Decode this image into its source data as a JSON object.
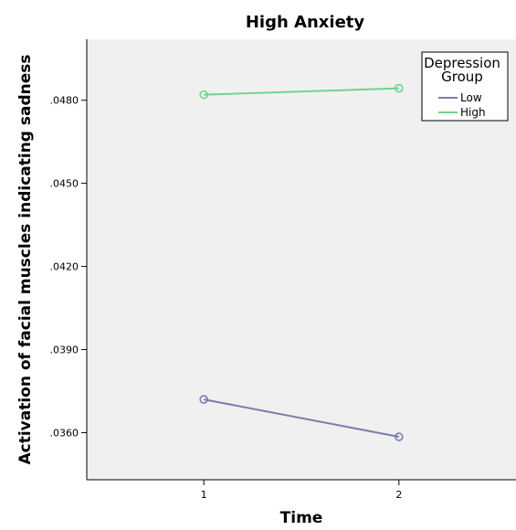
{
  "chart_data": {
    "type": "line",
    "title": "High Anxiety",
    "xlabel": "Time",
    "ylabel": "Activation of facial muscles indicating sadness",
    "x": [
      1,
      2
    ],
    "x_tick_labels": [
      "1",
      "2"
    ],
    "xlim": [
      0.4,
      2.6
    ],
    "ylim": [
      0.0343,
      0.0502
    ],
    "y_ticks": [
      0.036,
      0.039,
      0.042,
      0.045,
      0.048
    ],
    "y_tick_labels": [
      ".0360",
      ".0390",
      ".0420",
      ".0450",
      ".0480"
    ],
    "grid": false,
    "background": "#f0f0f0",
    "legend": {
      "title_line1": "Depression",
      "title_line2": "Group",
      "placement": "top-right"
    },
    "series": [
      {
        "name": "Low",
        "values": [
          0.0372,
          0.03585
        ],
        "color": "#7a7eab"
      },
      {
        "name": "High",
        "values": [
          0.0482,
          0.04843
        ],
        "color": "#6fd48d"
      }
    ]
  }
}
